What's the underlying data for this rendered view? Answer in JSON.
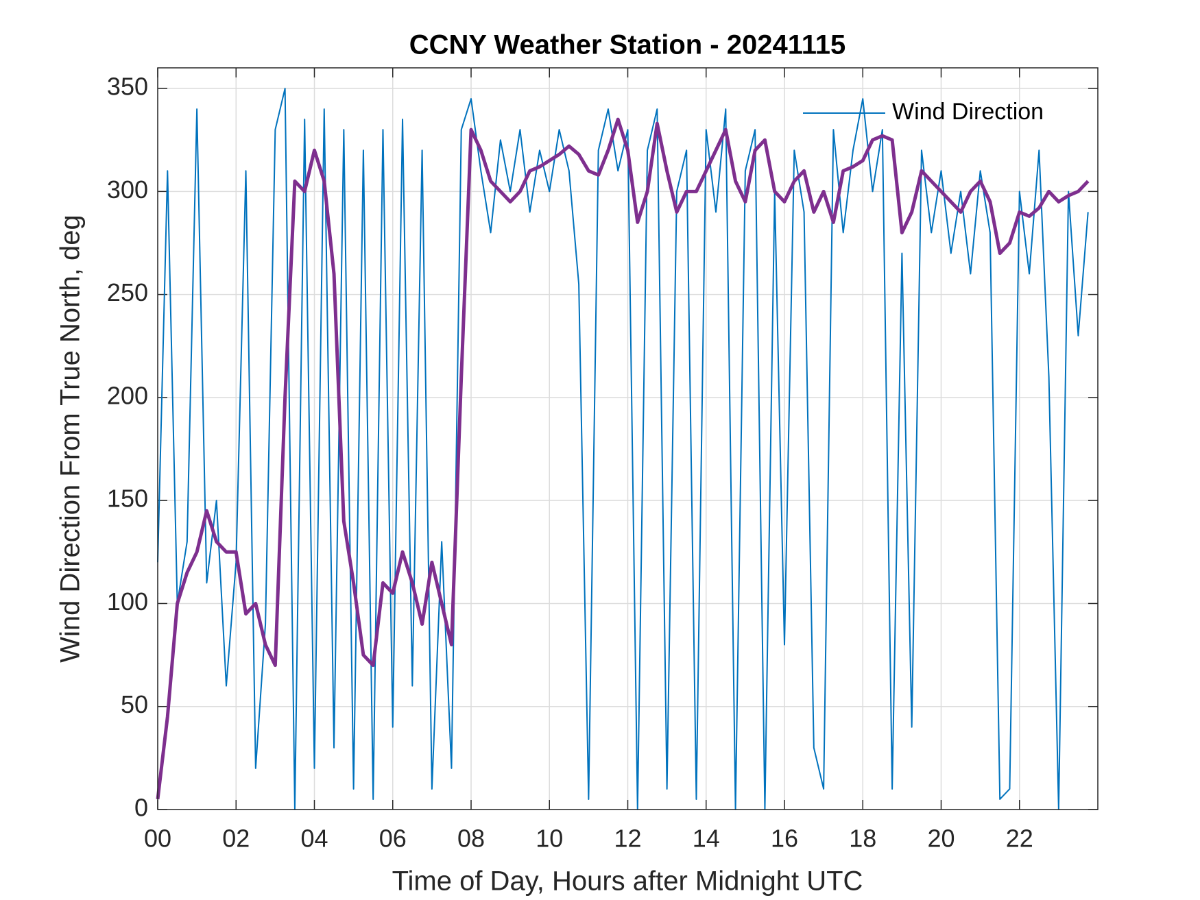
{
  "chart_data": {
    "type": "line",
    "title": "CCNY Weather Station - 20241115",
    "xlabel": "Time of Day, Hours after Midnight UTC",
    "ylabel": "Wind Direction From True North, deg",
    "x": [
      0,
      0.25,
      0.5,
      0.75,
      1,
      1.25,
      1.5,
      1.75,
      2,
      2.25,
      2.5,
      2.75,
      3,
      3.25,
      3.5,
      3.75,
      4,
      4.25,
      4.5,
      4.75,
      5,
      5.25,
      5.5,
      5.75,
      6,
      6.25,
      6.5,
      6.75,
      7,
      7.25,
      7.5,
      7.75,
      8,
      8.25,
      8.5,
      8.75,
      9,
      9.25,
      9.5,
      9.75,
      10,
      10.25,
      10.5,
      10.75,
      11,
      11.25,
      11.5,
      11.75,
      12,
      12.25,
      12.5,
      12.75,
      13,
      13.25,
      13.5,
      13.75,
      14,
      14.25,
      14.5,
      14.75,
      15,
      15.25,
      15.5,
      15.75,
      16,
      16.25,
      16.5,
      16.75,
      17,
      17.25,
      17.5,
      17.75,
      18,
      18.25,
      18.5,
      18.75,
      19,
      19.25,
      19.5,
      19.75,
      20,
      20.25,
      20.5,
      20.75,
      21,
      21.25,
      21.5,
      21.75,
      22,
      22.25,
      22.5,
      22.75,
      23,
      23.25,
      23.5,
      23.75
    ],
    "series": [
      {
        "name": "Wind Direction",
        "color": "#0072BD",
        "values": [
          120,
          310,
          100,
          130,
          340,
          110,
          150,
          60,
          120,
          310,
          20,
          90,
          330,
          350,
          0,
          335,
          20,
          340,
          30,
          330,
          10,
          320,
          5,
          330,
          40,
          335,
          60,
          320,
          10,
          130,
          20,
          330,
          345,
          310,
          280,
          325,
          300,
          330,
          290,
          320,
          300,
          330,
          310,
          255,
          5,
          320,
          340,
          310,
          330,
          0,
          320,
          340,
          10,
          300,
          320,
          5,
          330,
          290,
          340,
          0,
          310,
          330,
          0,
          300,
          80,
          320,
          290,
          30,
          10,
          330,
          280,
          320,
          345,
          300,
          330,
          10,
          270,
          40,
          320,
          280,
          310,
          270,
          300,
          260,
          310,
          280,
          5,
          10,
          300,
          260,
          320,
          210,
          0,
          300,
          230,
          290
        ]
      },
      {
        "color": "#7E2F8E",
        "values": [
          5,
          45,
          100,
          115,
          125,
          145,
          130,
          125,
          125,
          95,
          100,
          80,
          70,
          200,
          305,
          300,
          320,
          305,
          260,
          140,
          110,
          75,
          70,
          110,
          105,
          125,
          110,
          90,
          120,
          100,
          80,
          210,
          330,
          320,
          305,
          300,
          295,
          300,
          310,
          312,
          315,
          318,
          322,
          318,
          310,
          308,
          320,
          335,
          320,
          285,
          300,
          333,
          310,
          290,
          300,
          300,
          310,
          320,
          330,
          305,
          295,
          320,
          325,
          300,
          295,
          305,
          310,
          290,
          300,
          285,
          310,
          312,
          315,
          325,
          327,
          325,
          280,
          290,
          310,
          305,
          300,
          295,
          290,
          300,
          305,
          295,
          270,
          275,
          290,
          288,
          292,
          300,
          295,
          298,
          300,
          305
        ]
      }
    ],
    "xlim": [
      0,
      24
    ],
    "xticks": [
      {
        "value": 0,
        "label": "00"
      },
      {
        "value": 2,
        "label": "02"
      },
      {
        "value": 4,
        "label": "04"
      },
      {
        "value": 6,
        "label": "06"
      },
      {
        "value": 8,
        "label": "08"
      },
      10,
      12,
      14,
      16,
      18,
      20,
      22
    ],
    "ylim": [
      0,
      360
    ],
    "yticks": [
      0,
      50,
      100,
      150,
      200,
      250,
      300,
      350
    ],
    "grid": true,
    "legend": "upper right"
  }
}
